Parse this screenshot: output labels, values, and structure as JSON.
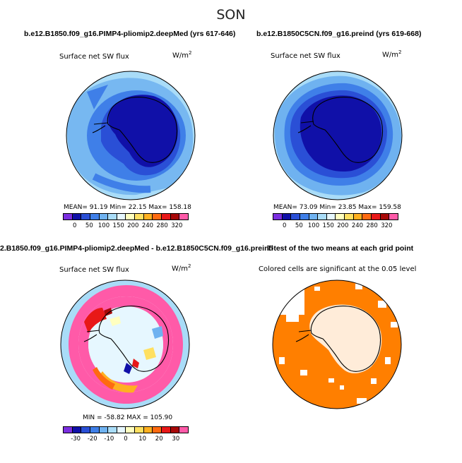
{
  "season": "SON",
  "panels": {
    "p1": {
      "title": "b.e12.B1850.f09_g16.PIMP4-pliomip2.deepMed (yrs 617-646)",
      "label": "Surface net SW flux",
      "unit_base": "W/m",
      "unit_exp": "2",
      "stats": "MEAN=   91.19   Min=   22.15   Max=  158.18",
      "colorbar_ticks": [
        "0",
        "50",
        "100",
        "150",
        "200",
        "240",
        "280",
        "320"
      ]
    },
    "p2": {
      "title": "b.e12.B1850C5CN.f09_g16.preind (yrs 619-668)",
      "label": "Surface net SW flux",
      "unit_base": "W/m",
      "unit_exp": "2",
      "stats": "MEAN=   73.09   Min=   23.85   Max=  159.58",
      "colorbar_ticks": [
        "0",
        "50",
        "100",
        "150",
        "200",
        "240",
        "280",
        "320"
      ]
    },
    "p3": {
      "title": "2.B1850.f09_g16.PIMP4-pliomip2.deepMed - b.e12.B1850C5CN.f09_g16.preind",
      "label": "Surface net SW flux",
      "unit_base": "W/m",
      "unit_exp": "2",
      "stats": "MIN = -58.82  MAX = 105.90",
      "colorbar_ticks": [
        "-30",
        "-20",
        "-10",
        "0",
        "10",
        "20",
        "30"
      ]
    },
    "p4": {
      "title": "T-test of the two means at each grid point",
      "label": "Colored cells are significant at the 0.05 level"
    }
  },
  "colors": {
    "abs_scale": [
      "#7b2ee0",
      "#1010a8",
      "#2a4fd6",
      "#3f7fe8",
      "#6fb2f0",
      "#a9dcf8",
      "#e6f7ff",
      "#ffffc0",
      "#ffe060",
      "#ffb020",
      "#ff6a10",
      "#e81818",
      "#a80808",
      "#ff5aa8"
    ],
    "diff_scale": [
      "#7b2ee0",
      "#1010a8",
      "#2a4fd6",
      "#3f7fe8",
      "#6fb2f0",
      "#a9dcf8",
      "#e6f7ff",
      "#ffffc0",
      "#ffe060",
      "#ffb020",
      "#ff6a10",
      "#e81818",
      "#a80808",
      "#ff5aa8"
    ],
    "significance": "#ff7f00"
  }
}
